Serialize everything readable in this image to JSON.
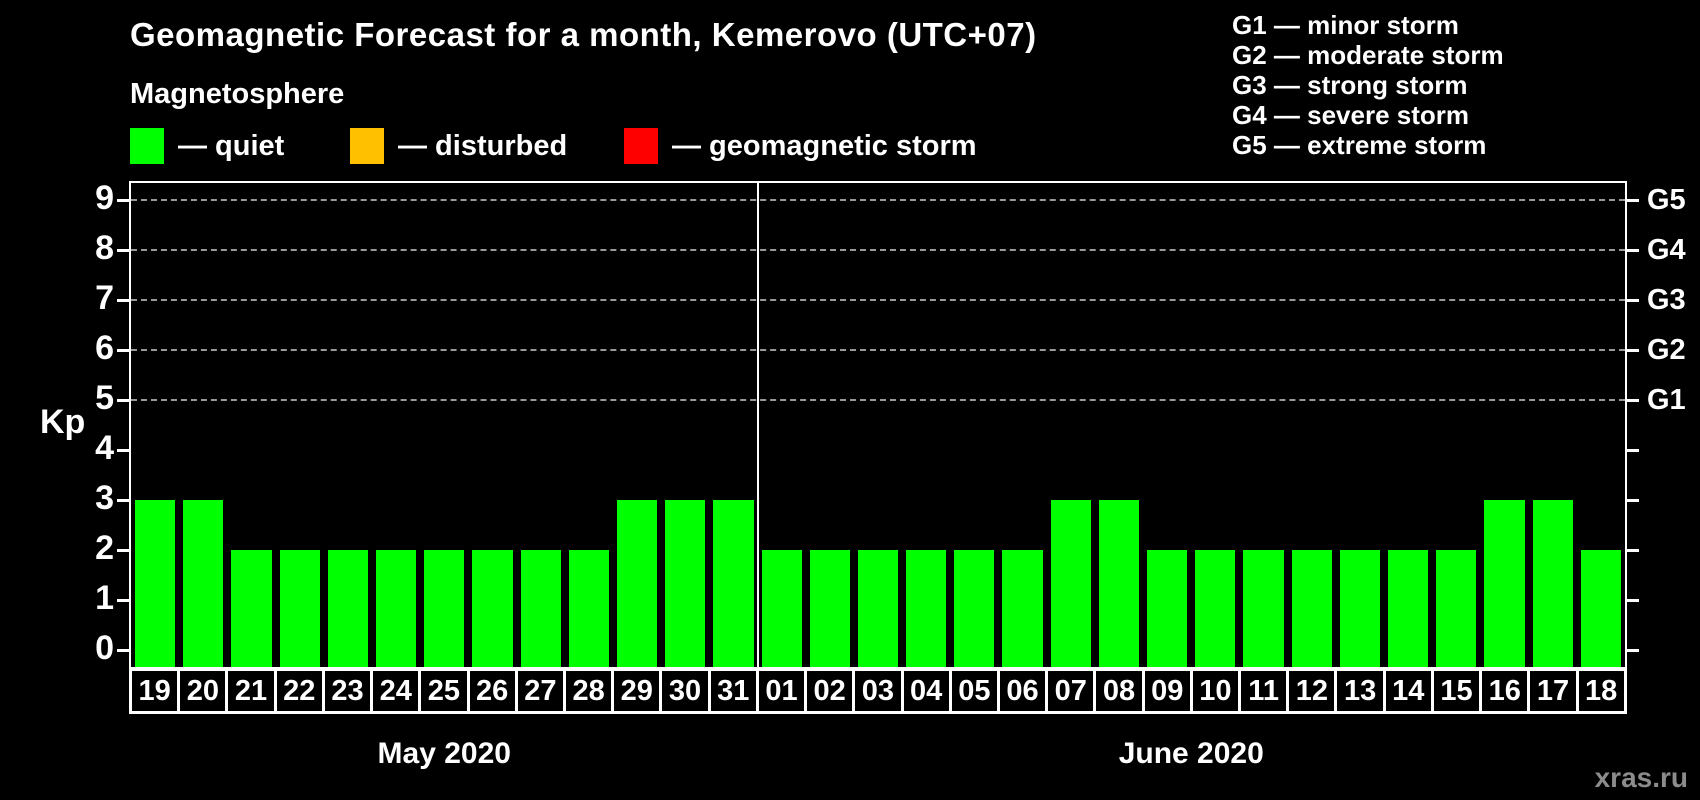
{
  "title": "Geomagnetic Forecast for a month, Kemerovo (UTC+07)",
  "subtitle": "Magnetosphere",
  "legend": {
    "items": [
      {
        "name": "quiet",
        "label": "— quiet",
        "color": "#00ff00"
      },
      {
        "name": "disturbed",
        "label": "— disturbed",
        "color": "#ffc000"
      },
      {
        "name": "storm",
        "label": "— geomagnetic storm",
        "color": "#ff0000"
      }
    ]
  },
  "g_legend": {
    "lines": [
      "G1 — minor storm",
      "G2 — moderate storm",
      "G3 — strong storm",
      "G4 — severe storm",
      "G5 — extreme storm"
    ]
  },
  "watermark": "xras.ru",
  "chart_data": {
    "type": "bar",
    "title": "Geomagnetic Forecast for a month, Kemerovo (UTC+07)",
    "ylabel": "Kp",
    "ylim": [
      0,
      9
    ],
    "y_ticks": [
      0,
      1,
      2,
      3,
      4,
      5,
      6,
      7,
      8,
      9
    ],
    "grid": "horizontal dashed lines at Kp 5,6,7,8,9 only",
    "legend_position": "top",
    "right_axis": {
      "labels": [
        "G1",
        "G2",
        "G3",
        "G4",
        "G5"
      ],
      "kp_levels": [
        5,
        6,
        7,
        8,
        9
      ]
    },
    "colors": {
      "quiet": "#00ff00",
      "disturbed": "#ffc000",
      "storm": "#ff0000"
    },
    "groups": [
      {
        "month": "May 2020",
        "days": [
          "19",
          "20",
          "21",
          "22",
          "23",
          "24",
          "25",
          "26",
          "27",
          "28",
          "29",
          "30",
          "31"
        ],
        "values": [
          3,
          3,
          2,
          2,
          2,
          2,
          2,
          2,
          2,
          2,
          3,
          3,
          3
        ]
      },
      {
        "month": "June 2020",
        "days": [
          "01",
          "02",
          "03",
          "04",
          "05",
          "06",
          "07",
          "08",
          "09",
          "10",
          "11",
          "12",
          "13",
          "14",
          "15",
          "16",
          "17",
          "18"
        ],
        "values": [
          2,
          2,
          2,
          2,
          2,
          2,
          3,
          3,
          2,
          2,
          2,
          2,
          2,
          2,
          2,
          3,
          3,
          2
        ]
      }
    ]
  }
}
